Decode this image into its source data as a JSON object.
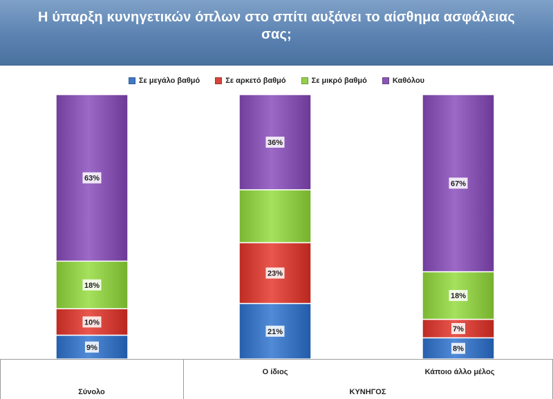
{
  "title": "Η ύπαρξη κυνηγετικών όπλων στο σπίτι αυξάνει το αίσθημα ασφάλειας σας;",
  "colors": {
    "series": [
      "#3f79c6",
      "#d6443b",
      "#93cf4b",
      "#8a57b5"
    ],
    "header": "#5b82b1"
  },
  "chart_data": {
    "type": "bar",
    "stacked": true,
    "percent": true,
    "title": "Η ύπαρξη κυνηγετικών όπλων στο σπίτι αυξάνει το αίσθημα ασφάλειας σας;",
    "legend_position": "top",
    "categories": [
      "Σύνολο",
      "Ο ίδιος",
      "Κάποιο άλλο μέλος"
    ],
    "category_group": "ΚΥΝΗΓΟΣ",
    "ylim": [
      0,
      100
    ],
    "grid": false,
    "series": [
      {
        "name": "Σε μεγάλο βαθμό",
        "values": [
          9,
          21,
          8
        ],
        "labels": [
          "9%",
          "21%",
          "8%"
        ]
      },
      {
        "name": "Σε αρκετό βαθμό",
        "values": [
          10,
          23,
          7
        ],
        "labels": [
          "10%",
          "23%",
          "7%"
        ]
      },
      {
        "name": "Σε μικρό βαθμό",
        "values": [
          18,
          20,
          18
        ],
        "labels": [
          "18%",
          "",
          "18%"
        ]
      },
      {
        "name": "Καθόλου",
        "values": [
          63,
          36,
          67
        ],
        "labels": [
          "63%",
          "36%",
          "67%"
        ]
      }
    ]
  }
}
